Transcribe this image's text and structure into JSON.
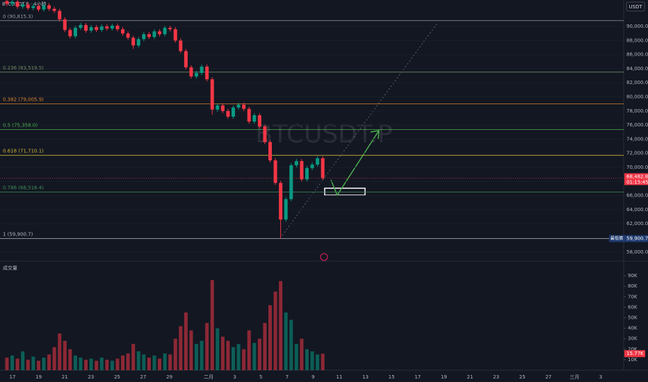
{
  "chart_data": {
    "type": "candlestick",
    "header": "BTCUSDT.P · 4小時",
    "watermark": "BTCUSDT.P",
    "currency": "USDT",
    "up_color": "#089981",
    "down_color": "#f23645",
    "open": [
      93600,
      93200,
      93500,
      92800,
      93100,
      92600,
      92900,
      92400,
      93000,
      92500,
      92200,
      91000,
      89500,
      88600,
      89800,
      90200,
      89400,
      89900,
      89500,
      90000,
      89700,
      90100,
      89600,
      89000,
      88400,
      87300,
      88200,
      88900,
      88500,
      89300,
      88900,
      89800,
      89600,
      88000,
      86500,
      84200,
      82900,
      83400,
      84300,
      82500,
      78200,
      78800,
      78000,
      77200,
      78500,
      78900,
      78300,
      76500,
      77400,
      75800,
      73600,
      71000,
      67800,
      62600,
      65500,
      70300,
      70900,
      68300,
      69900,
      70400,
      71300
    ],
    "high": [
      93900,
      93800,
      93800,
      93400,
      93400,
      93200,
      93200,
      93300,
      93300,
      92800,
      92500,
      91300,
      89800,
      90100,
      90500,
      90500,
      90200,
      90200,
      90300,
      90300,
      90400,
      90400,
      89900,
      89300,
      88700,
      88500,
      89200,
      89200,
      89600,
      89600,
      90100,
      90100,
      89900,
      88300,
      86800,
      84500,
      83700,
      84600,
      84600,
      82800,
      79100,
      79100,
      78300,
      78800,
      79200,
      79200,
      78600,
      77700,
      77700,
      76100,
      73900,
      71300,
      68100,
      65800,
      70600,
      71200,
      71200,
      70200,
      70700,
      71600,
      71600
    ],
    "low": [
      92900,
      92900,
      92500,
      92500,
      92300,
      92300,
      92100,
      92100,
      92200,
      91900,
      90700,
      89200,
      88300,
      88300,
      89500,
      89100,
      89100,
      89200,
      89200,
      89400,
      89400,
      89300,
      88700,
      88100,
      86800,
      87000,
      87900,
      88200,
      88200,
      88600,
      88600,
      89300,
      87700,
      86200,
      83900,
      82600,
      82600,
      83100,
      82200,
      77500,
      77900,
      77700,
      76900,
      76900,
      78200,
      78000,
      76200,
      76200,
      75500,
      73300,
      70700,
      67500,
      59900,
      62300,
      65200,
      70000,
      68000,
      68000,
      69600,
      70100,
      68200
    ],
    "close": [
      93200,
      93500,
      92800,
      93100,
      92600,
      92900,
      92400,
      93000,
      92500,
      92200,
      91000,
      89500,
      88600,
      89800,
      90200,
      89400,
      89900,
      89500,
      90000,
      89700,
      90100,
      89600,
      89000,
      88400,
      87300,
      88200,
      88900,
      88500,
      89300,
      88900,
      89800,
      89600,
      88000,
      86500,
      84200,
      82900,
      83400,
      84300,
      82500,
      78200,
      78800,
      78000,
      77200,
      78500,
      78900,
      78300,
      76500,
      77400,
      75800,
      73600,
      71000,
      67800,
      62600,
      65500,
      70300,
      70900,
      68300,
      69900,
      70400,
      71300,
      68482.8
    ],
    "ylim": [
      56800,
      93750
    ],
    "yticks": [
      {
        "value": 58000,
        "label": "58,000.0"
      },
      {
        "value": 60000,
        "label": "60,000.0"
      },
      {
        "value": 62000,
        "label": "62,000.0"
      },
      {
        "value": 64000,
        "label": "64,000.0"
      },
      {
        "value": 66000,
        "label": "66,000.0"
      },
      {
        "value": 68000,
        "label": "68,000.0"
      },
      {
        "value": 70000,
        "label": "70,000.0"
      },
      {
        "value": 72000,
        "label": "72,000.0"
      },
      {
        "value": 74000,
        "label": "74,000.0"
      },
      {
        "value": 76000,
        "label": "76,000.0"
      },
      {
        "value": 78000,
        "label": "78,000.0"
      },
      {
        "value": 80000,
        "label": "80,000.0"
      },
      {
        "value": 82000,
        "label": "82,000.0"
      },
      {
        "value": 84000,
        "label": "84,000.0"
      },
      {
        "value": 86000,
        "label": "86,000.0"
      },
      {
        "value": 88000,
        "label": "88,000.0"
      },
      {
        "value": 90000,
        "label": "90,000.0"
      }
    ],
    "xticks": [
      "17",
      "19",
      "21",
      "23",
      "25",
      "27",
      "29",
      "二月",
      "3",
      "5",
      "7",
      "9",
      "11",
      "13",
      "15",
      "17",
      "19",
      "21",
      "23",
      "25",
      "27",
      "三月",
      "3"
    ],
    "fib": [
      {
        "price": 90815.3,
        "label": "0 (90,815.3)",
        "color": "#9598a1"
      },
      {
        "price": 83519.5,
        "label": "0.236 (83,519.5)",
        "color": "#6f8a63"
      },
      {
        "price": 79005.9,
        "label": "0.382 (79,005.9)",
        "color": "#d9822b"
      },
      {
        "price": 75358.0,
        "label": "0.5 (75,358.0)",
        "color": "#4caf50"
      },
      {
        "price": 71710.1,
        "label": "0.618 (71,710.1)",
        "color": "#c9b437"
      },
      {
        "price": 66516.4,
        "label": "0.786 (66,516.4)",
        "color": "#3f8f5a"
      },
      {
        "price": 59900.7,
        "label": "1 (59,900.7)",
        "color": "#b2b5be"
      }
    ],
    "last_price": {
      "value": 68482.8,
      "value_label": "68,482.8",
      "countdown": "01:15:45"
    },
    "low_marker": {
      "name": "最低價",
      "value": 59900.7,
      "value_label": "59,900.7"
    },
    "volume": {
      "label": "成交量",
      "values": [
        12000,
        14000,
        11000,
        18000,
        10000,
        13000,
        9000,
        12000,
        15000,
        22000,
        35000,
        28000,
        20000,
        14000,
        12000,
        10000,
        11000,
        9000,
        12000,
        10000,
        9000,
        11000,
        14000,
        16000,
        25000,
        18000,
        15000,
        12000,
        14000,
        11000,
        16000,
        15000,
        30000,
        42000,
        55000,
        38000,
        25000,
        28000,
        45000,
        86000,
        40000,
        32000,
        28000,
        22000,
        25000,
        20000,
        38000,
        26000,
        30000,
        45000,
        62000,
        75000,
        85000,
        55000,
        48000,
        25000,
        30000,
        20000,
        18000,
        15000,
        15770
      ],
      "last_label": "15.77K",
      "ylim": [
        0,
        104000
      ],
      "yticks": [
        {
          "value": 10000,
          "label": "10K"
        },
        {
          "value": 20000,
          "label": "20K"
        },
        {
          "value": 30000,
          "label": "30K"
        },
        {
          "value": 40000,
          "label": "40K"
        },
        {
          "value": 50000,
          "label": "50K"
        },
        {
          "value": 60000,
          "label": "60K"
        },
        {
          "value": 70000,
          "label": "70K"
        },
        {
          "value": 80000,
          "label": "80K"
        },
        {
          "value": 90000,
          "label": "90K"
        }
      ]
    }
  }
}
